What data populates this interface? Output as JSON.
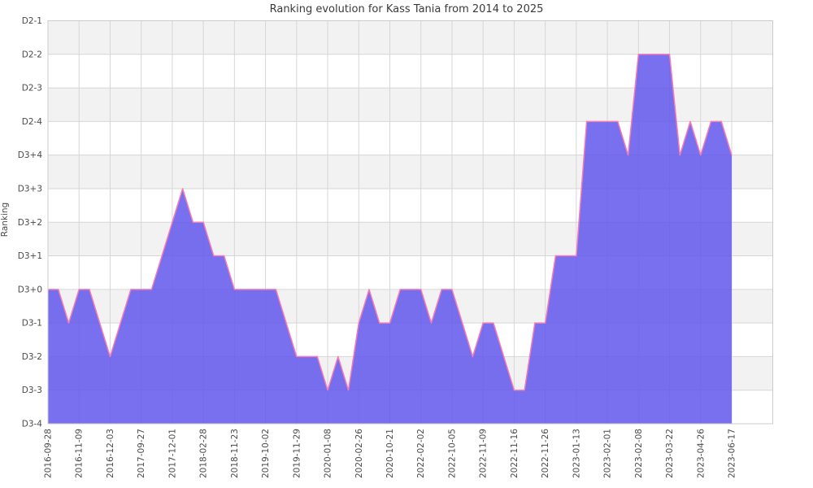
{
  "chart_data": {
    "type": "area",
    "title": "Ranking evolution for Kass Tania from 2014 to 2025",
    "ylabel": "Ranking",
    "legend": "none",
    "grid": "on",
    "y_axis_labels_bottom_to_top": [
      "D3-4",
      "D3-3",
      "D3-2",
      "D3-1",
      "D3+0",
      "D3+1",
      "D3+2",
      "D3+3",
      "D3+4",
      "D2-4",
      "D2-3",
      "D2-2",
      "D2-1"
    ],
    "x_tick_labels": [
      "2016-09-28",
      "2016-11-09",
      "2016-12-03",
      "2017-09-27",
      "2017-12-01",
      "2018-02-28",
      "2018-11-23",
      "2019-10-02",
      "2019-11-29",
      "2020-01-08",
      "2020-02-26",
      "2020-10-21",
      "2022-02-02",
      "2022-10-05",
      "2022-11-09",
      "2022-11-16",
      "2022-11-26",
      "2023-01-13",
      "2023-02-01",
      "2023-02-08",
      "2023-03-22",
      "2023-04-26",
      "2023-06-17"
    ],
    "points_per_tick_interval": 3,
    "values_rank_index": [
      4,
      4,
      3,
      4,
      4,
      3,
      2,
      3,
      4,
      4,
      4,
      5,
      6,
      7,
      6,
      6,
      5,
      5,
      4,
      4,
      4,
      4,
      4,
      3,
      2,
      2,
      2,
      1,
      2,
      1,
      3,
      4,
      3,
      3,
      4,
      4,
      4,
      3,
      4,
      4,
      3,
      2,
      3,
      3,
      2,
      1,
      1,
      3,
      3,
      5,
      5,
      5,
      9,
      9,
      9,
      9,
      8,
      11,
      11,
      11,
      11,
      8,
      9,
      8,
      9,
      9,
      8
    ],
    "ylim_rank_index": [
      0,
      12
    ],
    "colors": {
      "area_fill": "#6257ec",
      "area_fill_opacity": "0.85",
      "line": "#f77bb4",
      "band_gray": "#f2f2f2",
      "gridline": "#d6d6d6",
      "spine": "#cccccc",
      "text": "#4a4a4a",
      "title_text": "#3a3a3a"
    }
  }
}
